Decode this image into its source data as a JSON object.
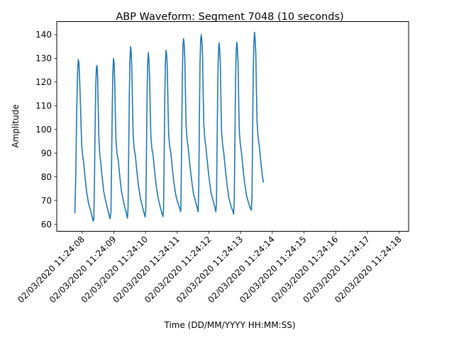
{
  "chart_data": {
    "type": "line",
    "title": "ABP Waveform: Segment 7048 (10 seconds)",
    "xlabel": "Time (DD/MM/YYYY HH:MM:SS)",
    "ylabel": "Amplitude",
    "xlim": [
      "02/03/2020 11:24:07.2",
      "02/03/2020 11:24:18.3"
    ],
    "ylim": [
      57,
      145.5
    ],
    "x_ticks": [
      "02/03/2020 11:24:08",
      "02/03/2020 11:24:09",
      "02/03/2020 11:24:10",
      "02/03/2020 11:24:11",
      "02/03/2020 11:24:12",
      "02/03/2020 11:24:13",
      "02/03/2020 11:24:14",
      "02/03/2020 11:24:15",
      "02/03/2020 11:24:16",
      "02/03/2020 11:24:17",
      "02/03/2020 11:24:18"
    ],
    "y_ticks": [
      "60",
      "70",
      "80",
      "90",
      "100",
      "110",
      "120",
      "130",
      "140"
    ],
    "grid": false,
    "line_color": "#1f77b4",
    "series": [
      {
        "x_unit": "seconds after 11:24:07",
        "points": [
          [
            0.77,
            64.8
          ],
          [
            0.8,
            80
          ],
          [
            0.82,
            100
          ],
          [
            0.84,
            115
          ],
          [
            0.86,
            125
          ],
          [
            0.88,
            129.5
          ],
          [
            0.9,
            128
          ],
          [
            0.92,
            122
          ],
          [
            0.95,
            110
          ],
          [
            0.97,
            100
          ],
          [
            0.99,
            93
          ],
          [
            1.02,
            88.5
          ],
          [
            1.05,
            86
          ],
          [
            1.09,
            80
          ],
          [
            1.14,
            74
          ],
          [
            1.2,
            69
          ],
          [
            1.26,
            66
          ],
          [
            1.31,
            63.5
          ],
          [
            1.35,
            61.3
          ],
          [
            1.37,
            62
          ],
          [
            1.39,
            78
          ],
          [
            1.41,
            100
          ],
          [
            1.43,
            118
          ],
          [
            1.45,
            126
          ],
          [
            1.47,
            127
          ],
          [
            1.49,
            122
          ],
          [
            1.51,
            108
          ],
          [
            1.53,
            96
          ],
          [
            1.56,
            89
          ],
          [
            1.59,
            86
          ],
          [
            1.63,
            80
          ],
          [
            1.68,
            74
          ],
          [
            1.74,
            70
          ],
          [
            1.8,
            66.5
          ],
          [
            1.85,
            64
          ],
          [
            1.88,
            62.3
          ],
          [
            1.91,
            65
          ],
          [
            1.93,
            85
          ],
          [
            1.95,
            108
          ],
          [
            1.97,
            124
          ],
          [
            1.99,
            130
          ],
          [
            2.01,
            128
          ],
          [
            2.03,
            120
          ],
          [
            2.05,
            105
          ],
          [
            2.07,
            95
          ],
          [
            2.1,
            90
          ],
          [
            2.14,
            87
          ],
          [
            2.19,
            80
          ],
          [
            2.24,
            74
          ],
          [
            2.3,
            70
          ],
          [
            2.35,
            67
          ],
          [
            2.4,
            64.5
          ],
          [
            2.43,
            62.5
          ],
          [
            2.45,
            67
          ],
          [
            2.47,
            90
          ],
          [
            2.49,
            115
          ],
          [
            2.51,
            130
          ],
          [
            2.53,
            135
          ],
          [
            2.55,
            132
          ],
          [
            2.57,
            125
          ],
          [
            2.59,
            110
          ],
          [
            2.61,
            98
          ],
          [
            2.64,
            92
          ],
          [
            2.68,
            89
          ],
          [
            2.73,
            82
          ],
          [
            2.78,
            76
          ],
          [
            2.84,
            71
          ],
          [
            2.9,
            67.5
          ],
          [
            2.95,
            65
          ],
          [
            2.99,
            63
          ],
          [
            3.01,
            66
          ],
          [
            3.03,
            90
          ],
          [
            3.05,
            115
          ],
          [
            3.07,
            128
          ],
          [
            3.09,
            132.5
          ],
          [
            3.11,
            129
          ],
          [
            3.13,
            122
          ],
          [
            3.15,
            108
          ],
          [
            3.17,
            97
          ],
          [
            3.2,
            92
          ],
          [
            3.24,
            89
          ],
          [
            3.29,
            82
          ],
          [
            3.34,
            76
          ],
          [
            3.4,
            71
          ],
          [
            3.46,
            67.5
          ],
          [
            3.51,
            65
          ],
          [
            3.55,
            63.2
          ],
          [
            3.57,
            66
          ],
          [
            3.59,
            90
          ],
          [
            3.61,
            115
          ],
          [
            3.63,
            129
          ],
          [
            3.65,
            133.5
          ],
          [
            3.67,
            131
          ],
          [
            3.69,
            125
          ],
          [
            3.71,
            110
          ],
          [
            3.73,
            98
          ],
          [
            3.76,
            93
          ],
          [
            3.8,
            90
          ],
          [
            3.85,
            83
          ],
          [
            3.9,
            77
          ],
          [
            3.96,
            72
          ],
          [
            4.02,
            69
          ],
          [
            4.07,
            67
          ],
          [
            4.11,
            65.3
          ],
          [
            4.12,
            70
          ],
          [
            4.14,
            95
          ],
          [
            4.16,
            120
          ],
          [
            4.18,
            135
          ],
          [
            4.2,
            138.3
          ],
          [
            4.22,
            136
          ],
          [
            4.24,
            130
          ],
          [
            4.26,
            115
          ],
          [
            4.28,
            102
          ],
          [
            4.31,
            96
          ],
          [
            4.35,
            92
          ],
          [
            4.4,
            85
          ],
          [
            4.45,
            79
          ],
          [
            4.51,
            73
          ],
          [
            4.57,
            70
          ],
          [
            4.62,
            67.5
          ],
          [
            4.66,
            65.2
          ],
          [
            4.68,
            75
          ],
          [
            4.7,
            105
          ],
          [
            4.72,
            128
          ],
          [
            4.74,
            138
          ],
          [
            4.76,
            140
          ],
          [
            4.78,
            137
          ],
          [
            4.8,
            131
          ],
          [
            4.82,
            115
          ],
          [
            4.84,
            102
          ],
          [
            4.87,
            96
          ],
          [
            4.91,
            92
          ],
          [
            4.96,
            85
          ],
          [
            5.01,
            79
          ],
          [
            5.07,
            73
          ],
          [
            5.13,
            70
          ],
          [
            5.18,
            67.5
          ],
          [
            5.22,
            65.2
          ],
          [
            5.24,
            70
          ],
          [
            5.26,
            95
          ],
          [
            5.28,
            120
          ],
          [
            5.3,
            133
          ],
          [
            5.32,
            136.6
          ],
          [
            5.34,
            134
          ],
          [
            5.36,
            128
          ],
          [
            5.38,
            112
          ],
          [
            5.4,
            99
          ],
          [
            5.43,
            94
          ],
          [
            5.47,
            90
          ],
          [
            5.52,
            83
          ],
          [
            5.57,
            77
          ],
          [
            5.63,
            71
          ],
          [
            5.69,
            68
          ],
          [
            5.74,
            66
          ],
          [
            5.78,
            64.3
          ],
          [
            5.8,
            70
          ],
          [
            5.82,
            95
          ],
          [
            5.84,
            120
          ],
          [
            5.86,
            133
          ],
          [
            5.88,
            136.8
          ],
          [
            5.9,
            134
          ],
          [
            5.92,
            128
          ],
          [
            5.94,
            112
          ],
          [
            5.96,
            99
          ],
          [
            5.99,
            94
          ],
          [
            6.03,
            90
          ],
          [
            6.08,
            83
          ],
          [
            6.13,
            77
          ],
          [
            6.19,
            72
          ],
          [
            6.25,
            69
          ],
          [
            6.3,
            67
          ],
          [
            6.34,
            65.8
          ],
          [
            6.36,
            72
          ],
          [
            6.38,
            100
          ],
          [
            6.4,
            125
          ],
          [
            6.42,
            137
          ],
          [
            6.44,
            141
          ],
          [
            6.46,
            138
          ],
          [
            6.48,
            132
          ],
          [
            6.5,
            116
          ],
          [
            6.52,
            103
          ],
          [
            6.55,
            97
          ],
          [
            6.59,
            93
          ],
          [
            6.64,
            86
          ],
          [
            6.69,
            80
          ],
          [
            6.72,
            77.7
          ]
        ]
      }
    ]
  }
}
